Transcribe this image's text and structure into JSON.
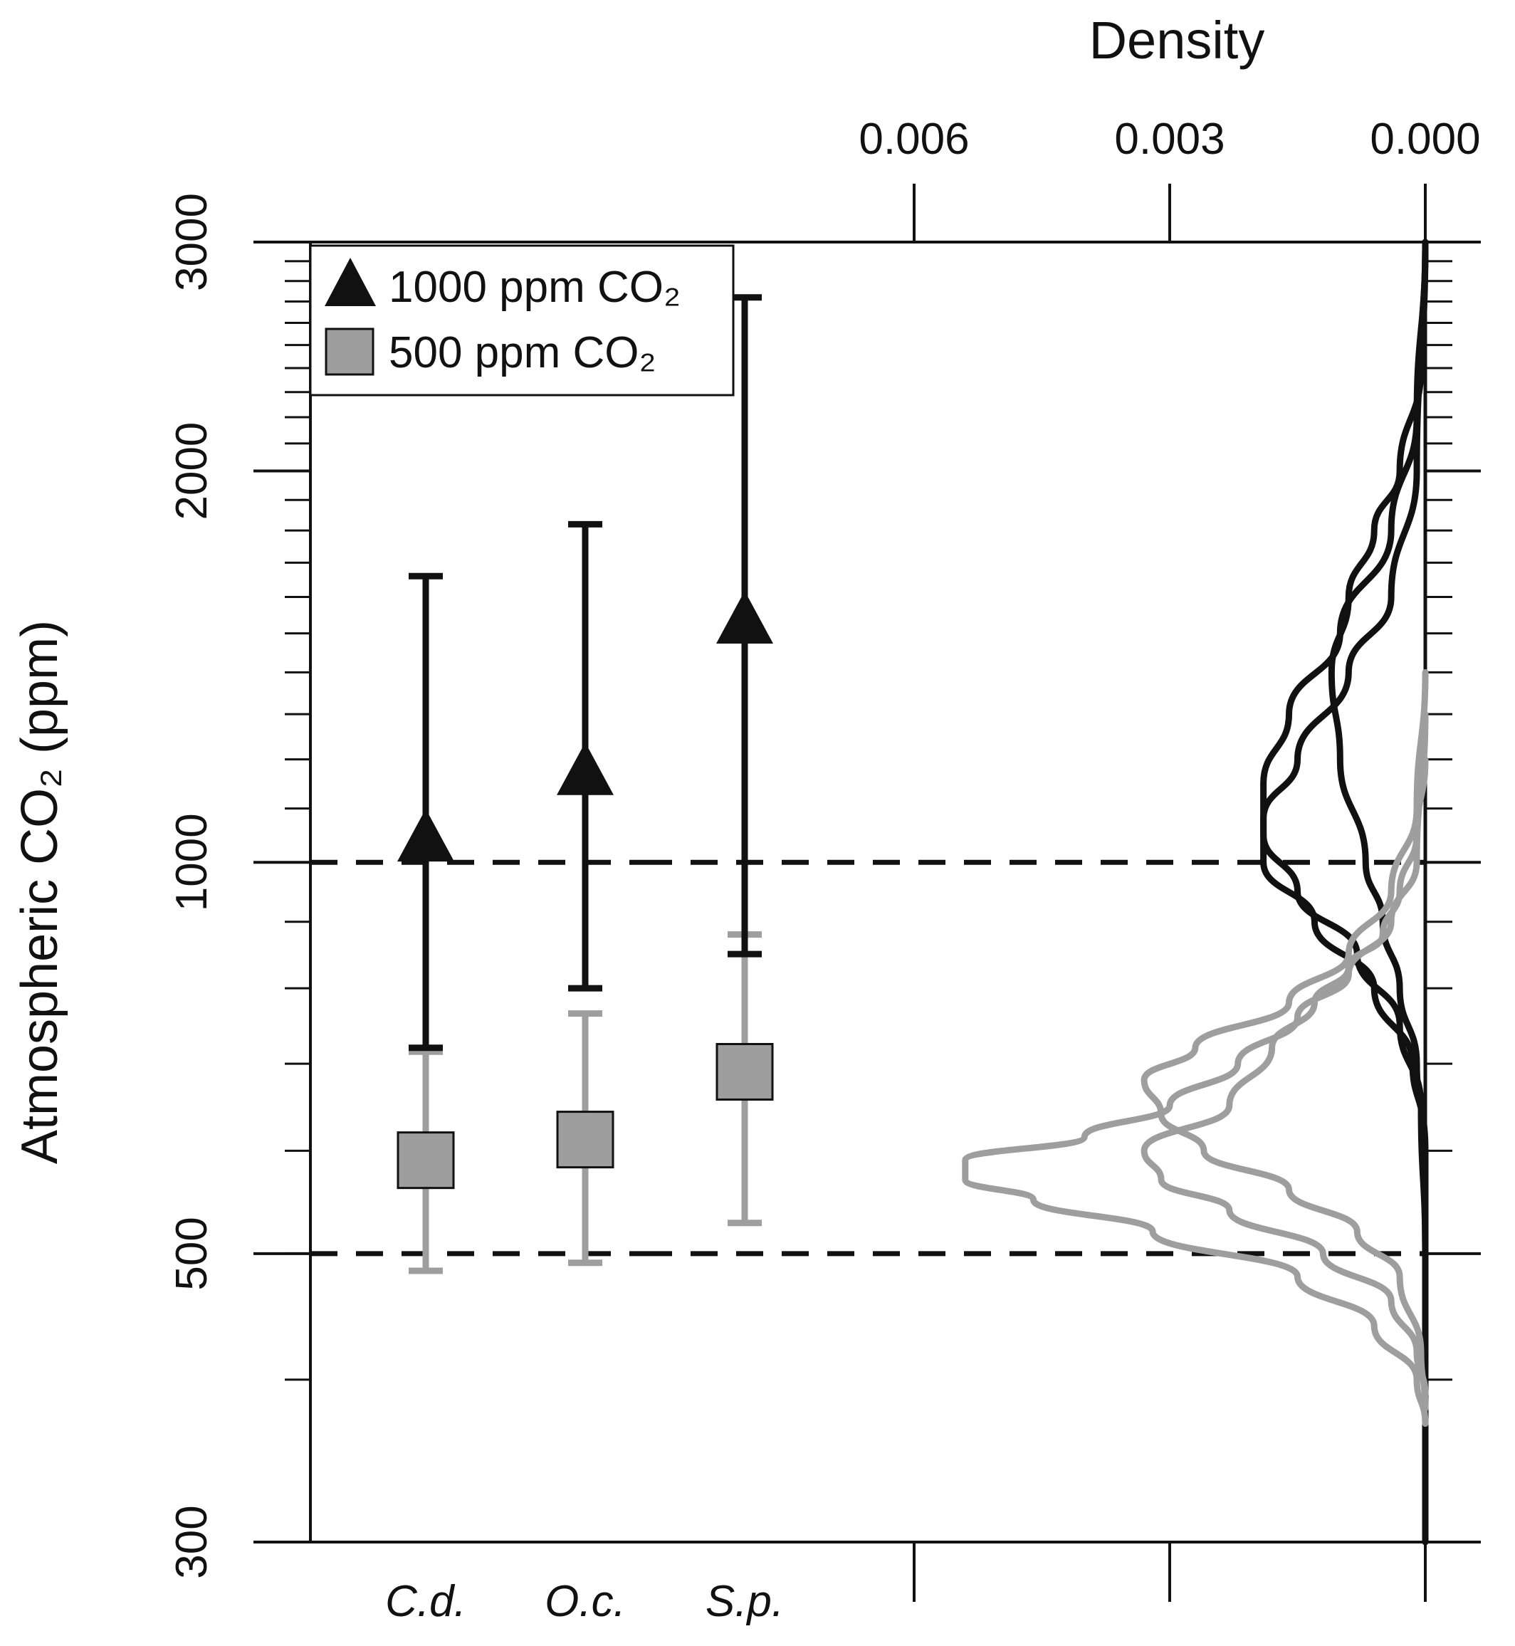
{
  "chart_data": {
    "type": "scatter",
    "ylabel": "Atmospheric CO₂ (ppm)",
    "y_scale": "log",
    "ylim": [
      300,
      3000
    ],
    "y_ticks": [
      {
        "value": 300,
        "label": "300"
      },
      {
        "value": 500,
        "label": "500"
      },
      {
        "value": 1000,
        "label": "1000"
      },
      {
        "value": 2000,
        "label": "2000"
      },
      {
        "value": 3000,
        "label": "3000"
      }
    ],
    "categories": [
      "C.d.",
      "O.c.",
      "S.p."
    ],
    "reference_lines": [
      1000,
      500
    ],
    "series": [
      {
        "name": "1000 ppm CO₂",
        "marker": "triangle",
        "color": "#111111",
        "points": [
          {
            "category": "C.d.",
            "y": 1040,
            "low": 720,
            "high": 1660
          },
          {
            "category": "O.c.",
            "y": 1170,
            "low": 800,
            "high": 1820
          },
          {
            "category": "S.p.",
            "y": 1530,
            "low": 850,
            "high": 2720
          }
        ]
      },
      {
        "name": "500 ppm CO₂",
        "marker": "square",
        "color": "#9e9e9e",
        "points": [
          {
            "category": "C.d.",
            "y": 590,
            "low": 485,
            "high": 715
          },
          {
            "category": "O.c.",
            "y": 612,
            "low": 492,
            "high": 765
          },
          {
            "category": "S.p.",
            "y": 690,
            "low": 528,
            "high": 880
          }
        ]
      }
    ],
    "density_axis": {
      "label": "Density",
      "ticks": [
        {
          "value": 0.006,
          "label": "0.006"
        },
        {
          "value": 0.003,
          "label": "0.003"
        },
        {
          "value": 0.0,
          "label": "0.000"
        }
      ],
      "range": [
        0.0,
        0.0065
      ]
    },
    "density_curves": [
      {
        "color": "#111111",
        "points": [
          [
            3000,
            0
          ],
          [
            2000,
            0.0001
          ],
          [
            1600,
            0.0004
          ],
          [
            1400,
            0.0009
          ],
          [
            1200,
            0.0015
          ],
          [
            1080,
            0.0019
          ],
          [
            1000,
            0.0019
          ],
          [
            900,
            0.0013
          ],
          [
            800,
            0.0006
          ],
          [
            700,
            0.00015
          ],
          [
            620,
            2e-05
          ],
          [
            500,
            0
          ],
          [
            300,
            0
          ]
        ]
      },
      {
        "color": "#111111",
        "points": [
          [
            3000,
            0
          ],
          [
            2200,
            0.0001
          ],
          [
            1800,
            0.0004
          ],
          [
            1500,
            0.001
          ],
          [
            1300,
            0.0016
          ],
          [
            1150,
            0.0019
          ],
          [
            1050,
            0.0019
          ],
          [
            950,
            0.0015
          ],
          [
            850,
            0.0008
          ],
          [
            750,
            0.0003
          ],
          [
            650,
            5e-05
          ],
          [
            500,
            0
          ],
          [
            300,
            0
          ]
        ]
      },
      {
        "color": "#111111",
        "points": [
          [
            3000,
            0
          ],
          [
            2400,
            5e-05
          ],
          [
            2000,
            0.0003
          ],
          [
            1800,
            0.0006
          ],
          [
            1600,
            0.0009
          ],
          [
            1400,
            0.0011
          ],
          [
            1200,
            0.001
          ],
          [
            1000,
            0.0007
          ],
          [
            900,
            0.0005
          ],
          [
            800,
            0.0003
          ],
          [
            700,
            0.0001
          ],
          [
            600,
            0
          ],
          [
            300,
            0
          ]
        ]
      },
      {
        "color": "#9e9e9e",
        "points": [
          [
            1400,
            0
          ],
          [
            1100,
            0.0001
          ],
          [
            950,
            0.0004
          ],
          [
            850,
            0.0009
          ],
          [
            780,
            0.0016
          ],
          [
            720,
            0.0027
          ],
          [
            680,
            0.0033
          ],
          [
            640,
            0.0031
          ],
          [
            600,
            0.0026
          ],
          [
            560,
            0.0016
          ],
          [
            520,
            0.0008
          ],
          [
            480,
            0.0003
          ],
          [
            420,
            5e-05
          ],
          [
            380,
            0
          ]
        ]
      },
      {
        "color": "#9e9e9e",
        "points": [
          [
            1300,
            0
          ],
          [
            1000,
            0.0001
          ],
          [
            900,
            0.0004
          ],
          [
            820,
            0.0009
          ],
          [
            760,
            0.0015
          ],
          [
            700,
            0.0022
          ],
          [
            650,
            0.003
          ],
          [
            615,
            0.004
          ],
          [
            590,
            0.0054
          ],
          [
            570,
            0.0054
          ],
          [
            550,
            0.0046
          ],
          [
            520,
            0.0032
          ],
          [
            480,
            0.0015
          ],
          [
            440,
            0.0006
          ],
          [
            400,
            0.0001
          ],
          [
            370,
            0
          ]
        ]
      },
      {
        "color": "#9e9e9e",
        "points": [
          [
            1200,
            0
          ],
          [
            1050,
            0.0001
          ],
          [
            950,
            0.0003
          ],
          [
            880,
            0.0005
          ],
          [
            830,
            0.0009
          ],
          [
            780,
            0.0013
          ],
          [
            720,
            0.0018
          ],
          [
            650,
            0.0023
          ],
          [
            600,
            0.0033
          ],
          [
            570,
            0.0031
          ],
          [
            540,
            0.0023
          ],
          [
            500,
            0.0012
          ],
          [
            460,
            0.0004
          ],
          [
            420,
            0.0001
          ],
          [
            390,
            0
          ]
        ]
      }
    ]
  }
}
